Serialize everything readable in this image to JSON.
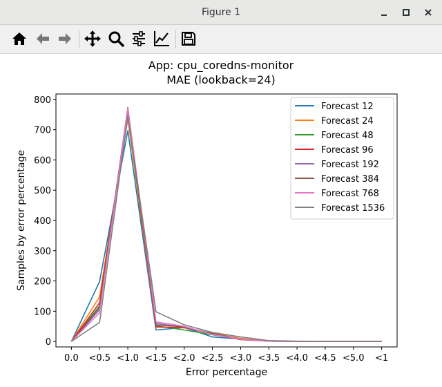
{
  "window": {
    "title": "Figure 1"
  },
  "toolbar": {
    "icons": [
      "home-icon",
      "back-arrow-icon",
      "forward-arrow-icon",
      "pan-icon",
      "zoom-icon",
      "configure-subplots-icon",
      "edit-axes-icon",
      "save-icon"
    ]
  },
  "chart_data": {
    "type": "line",
    "title": "App: cpu_coredns-monitor",
    "subtitle": "MAE (lookback=24)",
    "xlabel": "Error percentage",
    "ylabel": "Samples by error percentage",
    "categories": [
      "0.0",
      "<0.5",
      "<1.0",
      "<1.5",
      "<2.0",
      "<2.5",
      "<3.0",
      "<3.5",
      "<4.0",
      "<4.5",
      "<5.0",
      "<1"
    ],
    "yticks": [
      0,
      100,
      200,
      300,
      400,
      500,
      600,
      700,
      800
    ],
    "ylim": [
      -18,
      818
    ],
    "grid": false,
    "legend_position": "top-right",
    "series": [
      {
        "name": "Forecast 12",
        "color": "#1f77b4",
        "values": [
          0,
          198,
          697,
          38,
          46,
          15,
          8,
          2,
          0,
          0,
          0,
          0
        ]
      },
      {
        "name": "Forecast 24",
        "color": "#ff7f0e",
        "values": [
          0,
          148,
          735,
          48,
          45,
          27,
          10,
          2,
          0,
          0,
          0,
          0
        ]
      },
      {
        "name": "Forecast 48",
        "color": "#2ca02c",
        "values": [
          0,
          118,
          752,
          52,
          38,
          22,
          8,
          1,
          0,
          0,
          0,
          0
        ]
      },
      {
        "name": "Forecast 96",
        "color": "#d62728",
        "values": [
          0,
          128,
          760,
          48,
          46,
          24,
          6,
          1,
          0,
          0,
          0,
          0
        ]
      },
      {
        "name": "Forecast 192",
        "color": "#9467bd",
        "values": [
          0,
          105,
          767,
          60,
          47,
          24,
          7,
          1,
          0,
          0,
          0,
          0
        ]
      },
      {
        "name": "Forecast 384",
        "color": "#8c564b",
        "values": [
          0,
          112,
          773,
          55,
          48,
          26,
          8,
          1,
          0,
          0,
          0,
          0
        ]
      },
      {
        "name": "Forecast 768",
        "color": "#e377c2",
        "values": [
          0,
          95,
          770,
          65,
          50,
          23,
          8,
          1,
          0,
          0,
          0,
          0
        ]
      },
      {
        "name": "Forecast 1536",
        "color": "#7f7f7f",
        "values": [
          0,
          63,
          745,
          98,
          55,
          30,
          15,
          3,
          1,
          0,
          0,
          0
        ]
      }
    ]
  }
}
